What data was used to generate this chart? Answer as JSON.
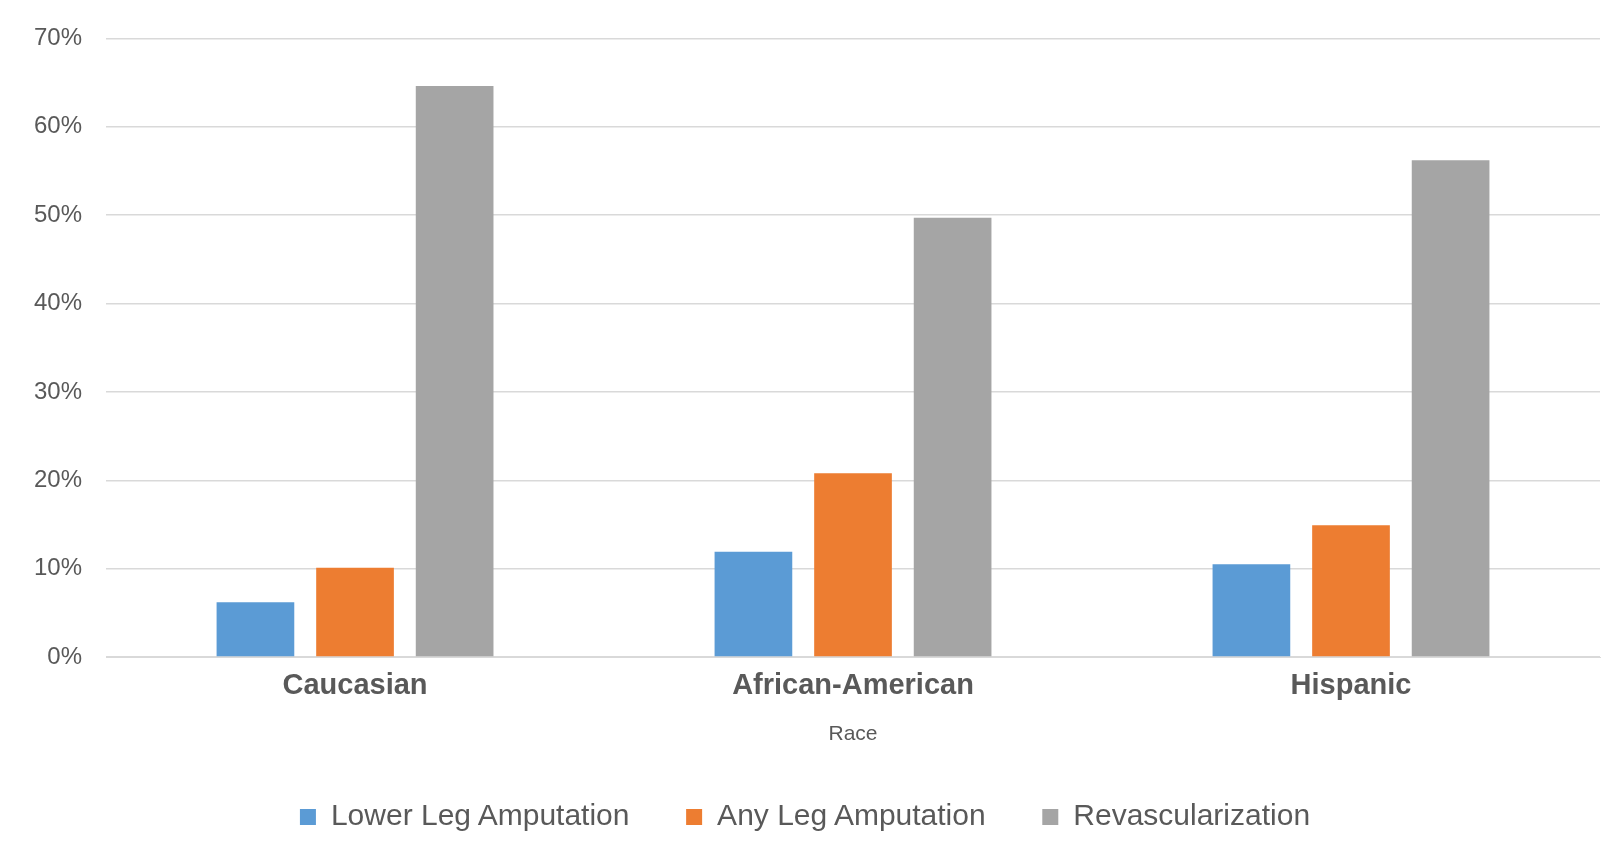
{
  "chart_data": {
    "type": "bar",
    "xlabel": "Race",
    "categories": [
      "Caucasian",
      "African-American",
      "Hispanic"
    ],
    "series": [
      {
        "name": "Lower Leg Amputation",
        "color": "#5b9bd5",
        "values": [
          6.2,
          11.9,
          10.5
        ]
      },
      {
        "name": "Any Leg Amputation",
        "color": "#ed7d31",
        "values": [
          10.1,
          20.8,
          14.9
        ]
      },
      {
        "name": "Revascularization",
        "color": "#a5a5a5",
        "values": [
          64.6,
          49.7,
          56.2
        ]
      }
    ],
    "ylim": [
      0,
      70
    ],
    "yticks": [
      {
        "value": 0,
        "label": "0%"
      },
      {
        "value": 10,
        "label": "10%"
      },
      {
        "value": 20,
        "label": "20%"
      },
      {
        "value": 30,
        "label": "30%"
      },
      {
        "value": 40,
        "label": "40%"
      },
      {
        "value": 50,
        "label": "50%"
      },
      {
        "value": 60,
        "label": "60%"
      },
      {
        "value": 70,
        "label": "70%"
      }
    ],
    "grid": "y",
    "legend": "bottom"
  }
}
